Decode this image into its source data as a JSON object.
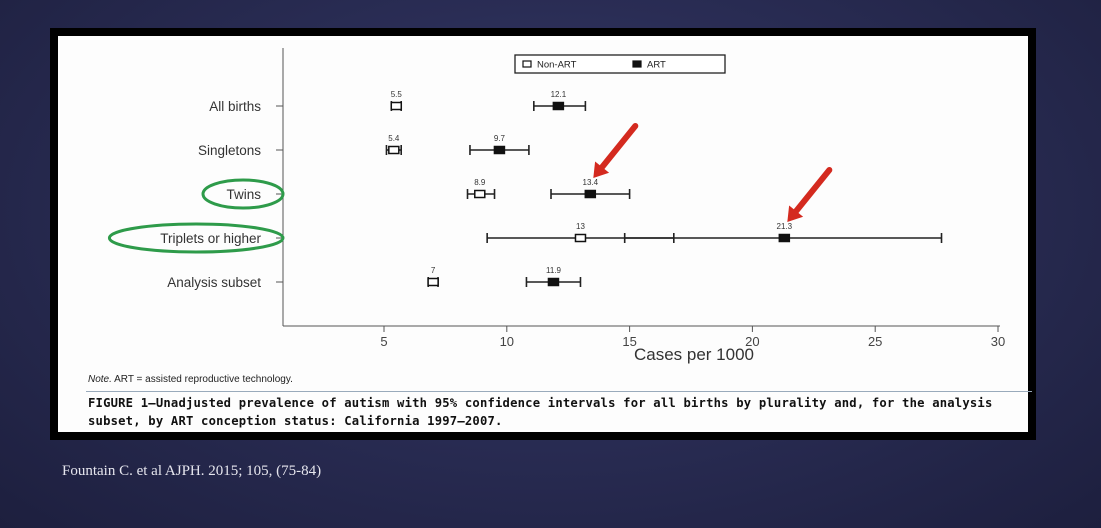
{
  "chart_data": {
    "type": "scatter",
    "subtype": "forest-plot",
    "xlabel": "Cases per 1000",
    "xlim": [
      3,
      31
    ],
    "xticks": [
      5,
      10,
      15,
      20,
      25,
      30
    ],
    "categories": [
      "All births",
      "Singletons",
      "Twins",
      "Triplets or higher",
      "Analysis subset"
    ],
    "legend": [
      "Non-ART",
      "ART"
    ],
    "legend_position": "top",
    "grid": false,
    "series": [
      {
        "name": "Non-ART",
        "points": [
          {
            "category": "All births",
            "value": 5.5,
            "label": "5.5",
            "ci": [
              5.3,
              5.7
            ]
          },
          {
            "category": "Singletons",
            "value": 5.4,
            "label": "5.4",
            "ci": [
              5.1,
              5.7
            ]
          },
          {
            "category": "Twins",
            "value": 8.9,
            "label": "8.9",
            "ci": [
              8.4,
              9.5
            ]
          },
          {
            "category": "Triplets or higher",
            "value": 13,
            "label": "13",
            "ci": [
              9.2,
              16.8
            ]
          },
          {
            "category": "Analysis subset",
            "value": 7,
            "label": "7",
            "ci": [
              6.8,
              7.2
            ]
          }
        ]
      },
      {
        "name": "ART",
        "points": [
          {
            "category": "All births",
            "value": 12.1,
            "label": "12.1",
            "ci": [
              11.1,
              13.2
            ]
          },
          {
            "category": "Singletons",
            "value": 9.7,
            "label": "9.7",
            "ci": [
              8.5,
              10.9
            ]
          },
          {
            "category": "Twins",
            "value": 13.4,
            "label": "13.4",
            "ci": [
              11.8,
              15.0
            ]
          },
          {
            "category": "Triplets or higher",
            "value": 21.3,
            "label": "21.3",
            "ci": [
              14.8,
              27.7
            ]
          },
          {
            "category": "Analysis subset",
            "value": 11.9,
            "label": "11.9",
            "ci": [
              10.8,
              13.0
            ]
          }
        ]
      }
    ],
    "highlighted_categories": [
      "Twins",
      "Triplets or higher"
    ],
    "highlight_color": "#2e9b4a",
    "arrow_targets": [
      {
        "category": "Twins",
        "value": 13.4
      },
      {
        "category": "Triplets or higher",
        "value": 21.3
      }
    ],
    "arrow_color": "#d42a1f"
  },
  "figure": {
    "note_prefix": "Note.",
    "note_text": "ART = assisted reproductive technology.",
    "caption": "FIGURE 1—Unadjusted prevalence of autism with 95% confidence intervals for all births by plurality and, for the analysis subset, by ART conception status: California 1997–2007."
  },
  "citation": "Fountain C. et al AJPH. 2015; 105, (75-84)",
  "colors": {
    "slide_background": "#2a2d55",
    "figure_frame": "#000000",
    "figure_panel": "#fdfdfd",
    "citation_text": "#e6e6ee"
  }
}
